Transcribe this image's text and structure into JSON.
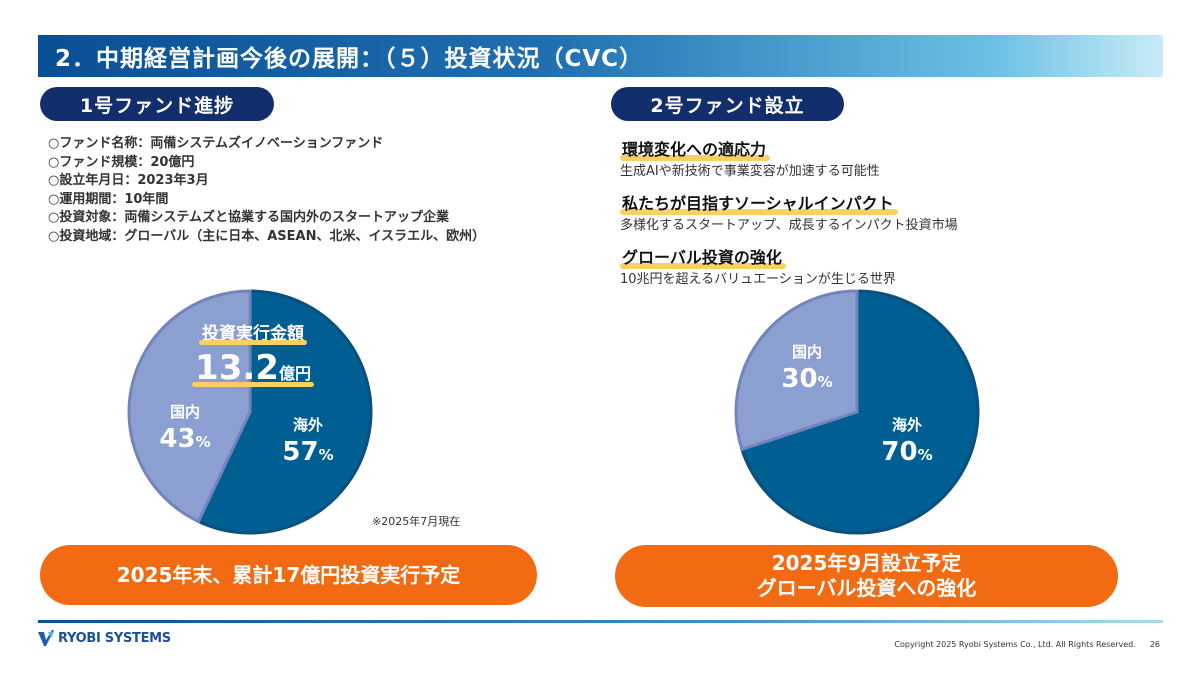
{
  "title": "2．中期経営計画今後の展開：（５）投資状況（CVC）",
  "fund1": {
    "label": "1号ファンド進捗",
    "info": [
      "○ファンド名称：両備システムズイノベーションファンド",
      "○ファンド規模：20億円",
      "○設立年月日：2023年3月",
      "○運用期間：10年間",
      "○投資対象：両備システムズと協業する国内外のスタートアップ企業",
      "○投資地域：グローバル（主に日本、ASEAN、北米、イスラエル、欧州）"
    ],
    "invest_label": "投資実行金額",
    "invest_value": "13.2",
    "invest_unit": "億円",
    "note": "※2025年7月現在",
    "banner": "2025年末、累計17億円投資実行予定"
  },
  "fund2": {
    "label": "2号ファンド設立",
    "points": [
      {
        "head": "環境変化への適応力",
        "sub": "生成AIや新技術で事業変容が加速する可能性"
      },
      {
        "head": "私たちが目指すソーシャルインパクト",
        "sub": "多様化するスタートアップ、成長するインパクト投資市場"
      },
      {
        "head": "グローバル投資の強化",
        "sub": "10兆円を超えるバリュエーションが生じる世界"
      }
    ],
    "banner_line1": "2025年9月設立予定",
    "banner_line2": "グローバル投資への強化"
  },
  "chart_data": [
    {
      "type": "pie",
      "slices": [
        {
          "name": "海外",
          "value": 57,
          "label": "57",
          "color": "#005f92"
        },
        {
          "name": "国内",
          "value": 43,
          "label": "43",
          "color": "#8c9fd1"
        }
      ],
      "unit": "%"
    },
    {
      "type": "pie",
      "slices": [
        {
          "name": "海外",
          "value": 70,
          "label": "70",
          "color": "#005f92"
        },
        {
          "name": "国内",
          "value": 30,
          "label": "30",
          "color": "#8c9fd1"
        }
      ],
      "unit": "%"
    }
  ],
  "footer": {
    "logo": "RYOBI SYSTEMS",
    "copyright": "Copyright 2025 Ryobi Systems Co., Ltd. All Rights Reserved.",
    "page": "26"
  },
  "colors": {
    "accent_navy": "#132e6d",
    "orange": "#f26b12",
    "highlight": "#f8d160"
  }
}
